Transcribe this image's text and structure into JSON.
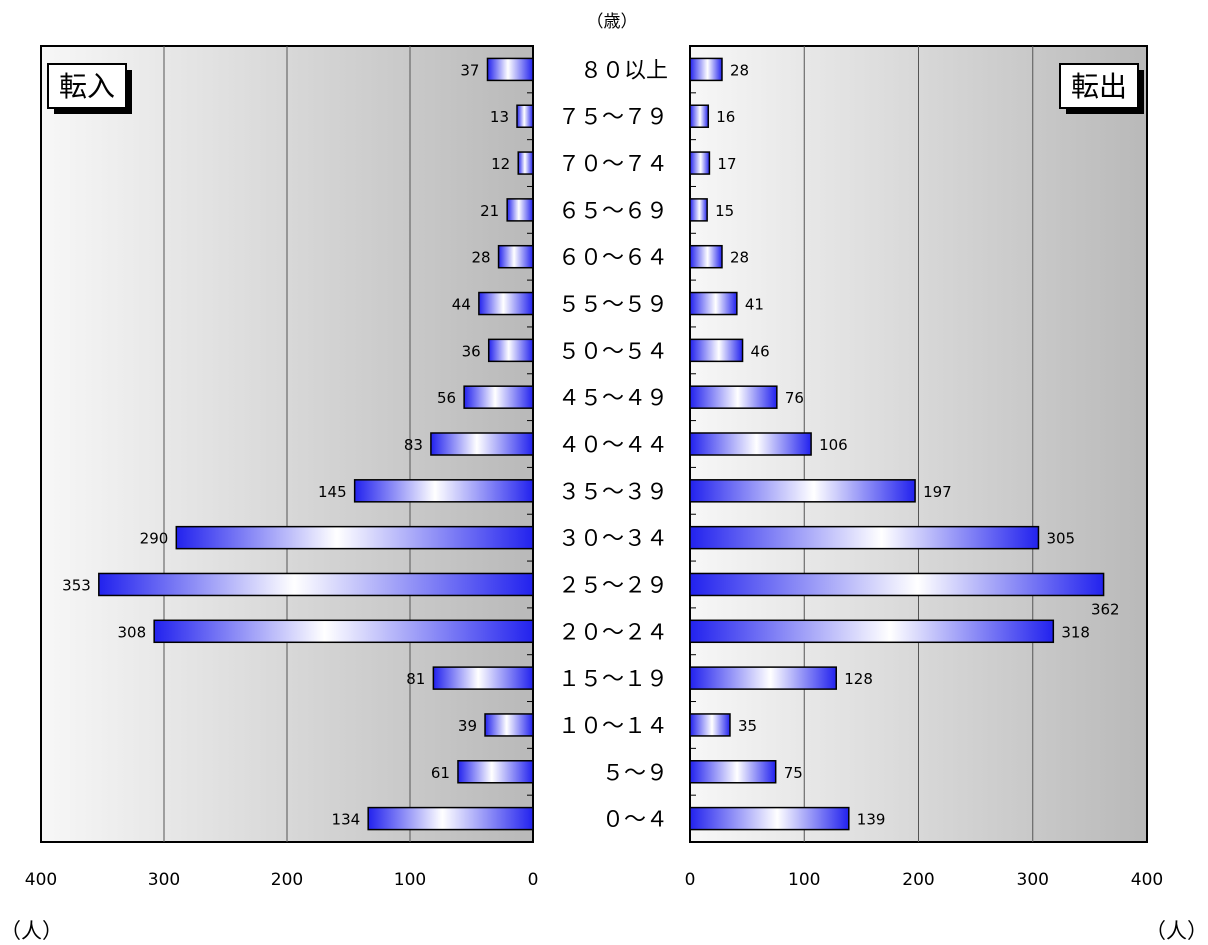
{
  "chart_data": [
    {
      "type": "bar",
      "orientation": "horizontal",
      "label": "転入",
      "categories": [
        "80以上",
        "75～79",
        "70～74",
        "65～69",
        "60～64",
        "55～59",
        "50～54",
        "45～49",
        "40～44",
        "35～39",
        "30～34",
        "25～29",
        "20～24",
        "15～19",
        "10～14",
        "5～9",
        "0～4"
      ],
      "values": [
        37,
        13,
        12,
        21,
        28,
        44,
        36,
        56,
        83,
        145,
        290,
        353,
        308,
        81,
        39,
        61,
        134
      ],
      "xlim": [
        0,
        400
      ],
      "x_ticks": [
        "400",
        "300",
        "200",
        "100",
        "0"
      ],
      "x_reversed": true,
      "grid": true
    },
    {
      "type": "bar",
      "orientation": "horizontal",
      "label": "転出",
      "categories": [
        "80以上",
        "75～79",
        "70～74",
        "65～69",
        "60～64",
        "55～59",
        "50～54",
        "45～49",
        "40～44",
        "35～39",
        "30～34",
        "25～29",
        "20～24",
        "15～19",
        "10～14",
        "5～9",
        "0～4"
      ],
      "values": [
        28,
        16,
        17,
        15,
        28,
        41,
        46,
        76,
        106,
        197,
        305,
        362,
        318,
        128,
        35,
        75,
        139
      ],
      "xlim": [
        0,
        400
      ],
      "x_ticks": [
        "0",
        "100",
        "200",
        "300",
        "400"
      ],
      "x_reversed": false,
      "grid": true
    }
  ],
  "labels": {
    "age_unit": "（歳）",
    "left_unit": "（人）",
    "right_unit": "（人）",
    "category_display": [
      "８０以上",
      "７５～７９",
      "７０～７４",
      "６５～６９",
      "６０～６４",
      "５５～５９",
      "５０～５４",
      "４５～４９",
      "４０～４４",
      "３５～３９",
      "３０～３４",
      "２５～２９",
      "２０～２４",
      "１５～１９",
      "１０～１４",
      "５～９",
      "０～４"
    ]
  },
  "colors": {
    "bar_blue": "#2222ee",
    "bar_light": "#ffffff",
    "panel_dark": "#b9b9b9",
    "panel_light": "#f7f7f7"
  }
}
